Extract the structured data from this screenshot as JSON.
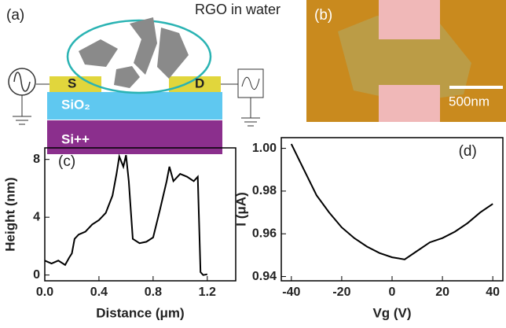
{
  "diagram": {
    "label": "(a)",
    "caption": "RGO in water",
    "source": "S",
    "drain": "D",
    "oxide": "SiO₂",
    "substrate": "Si++"
  },
  "image": {
    "label": "(b)",
    "scale": "500nm"
  },
  "chart_data": [
    {
      "type": "line",
      "label": "(c)",
      "xlabel": "Distance (μm)",
      "ylabel": "Height (nm)",
      "color": "#000000",
      "x": [
        0.0,
        0.05,
        0.1,
        0.15,
        0.18,
        0.2,
        0.22,
        0.25,
        0.3,
        0.35,
        0.4,
        0.45,
        0.5,
        0.53,
        0.55,
        0.58,
        0.6,
        0.62,
        0.65,
        0.7,
        0.75,
        0.8,
        0.85,
        0.9,
        0.92,
        0.95,
        1.0,
        1.05,
        1.1,
        1.13,
        1.15,
        1.17,
        1.2
      ],
      "values": [
        1.0,
        0.8,
        1.0,
        0.7,
        1.2,
        1.5,
        2.5,
        2.8,
        3.0,
        3.5,
        3.8,
        4.3,
        5.5,
        7.0,
        8.2,
        7.5,
        8.3,
        6.5,
        2.5,
        2.2,
        2.3,
        2.6,
        4.5,
        6.5,
        7.5,
        6.5,
        7.0,
        6.8,
        6.5,
        6.8,
        0.2,
        0.0,
        0.05
      ],
      "xlim": [
        0,
        1.41
      ],
      "ylim": [
        -0.4,
        8.8
      ],
      "xticks": [
        {
          "value": 0,
          "label": "0.0"
        },
        0.4,
        0.8,
        1.2
      ],
      "yticks": [
        0,
        4,
        8
      ]
    },
    {
      "type": "line",
      "label": "(d)",
      "xlabel": "Vg (V)",
      "ylabel": "I (μA)",
      "color": "#000000",
      "x": [
        -40,
        -35,
        -30,
        -25,
        -20,
        -15,
        -10,
        -5,
        0,
        5,
        10,
        15,
        20,
        25,
        30,
        35,
        40
      ],
      "values": [
        1.002,
        0.99,
        0.978,
        0.97,
        0.963,
        0.958,
        0.954,
        0.951,
        0.949,
        0.948,
        0.952,
        0.956,
        0.958,
        0.961,
        0.965,
        0.97,
        0.974
      ],
      "xlim": [
        -44,
        44
      ],
      "ylim": [
        0.938,
        1.005
      ],
      "xticks": [
        -40,
        -20,
        0,
        20,
        40
      ],
      "yticks": [
        0.94,
        0.96,
        0.98,
        {
          "value": 1,
          "label": "1.00"
        }
      ]
    }
  ]
}
